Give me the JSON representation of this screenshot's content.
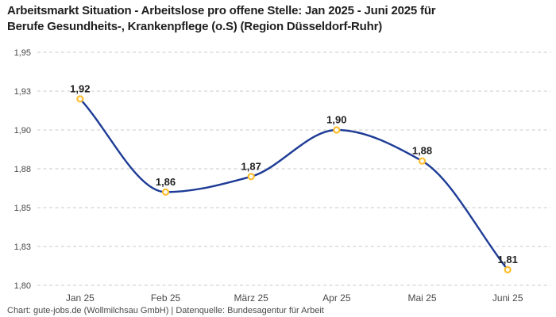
{
  "title": {
    "line1": "Arbeitsmarkt Situation - Arbeitslose pro offene Stelle: Jan 2025 - Juni 2025 für",
    "line2": "Berufe Gesundheits-, Krankenpflege (o.S) (Region Düsseldorf-Ruhr)"
  },
  "footer": "Chart: gute-jobs.de (Wollmilchsau GmbH) | Datenquelle: Bundesagentur für Arbeit",
  "colors": {
    "line": "#1e3c96",
    "marker_ring": "#fcbe2d",
    "marker_fill": "#ffffff",
    "gridline": "#c9c9c9",
    "title_text": "#1f1f1f",
    "axis_text": "#494949"
  },
  "chart_data": {
    "type": "line",
    "title": "Arbeitsmarkt Situation - Arbeitslose pro offene Stelle: Jan 2025 - Juni 2025 für Berufe Gesundheits-, Krankenpflege (o.S) (Region Düsseldorf-Ruhr)",
    "categories": [
      "Jan 25",
      "Feb 25",
      "März 25",
      "Apr 25",
      "Mai 25",
      "Juni 25"
    ],
    "values": [
      1.92,
      1.86,
      1.87,
      1.9,
      1.88,
      1.81
    ],
    "point_labels": [
      "1,92",
      "1,86",
      "1,87",
      "1,90",
      "1,88",
      "1,81"
    ],
    "ylim": [
      1.8,
      1.95
    ],
    "yticks": [
      {
        "value": 1.95,
        "label": "1,95"
      },
      {
        "value": 1.925,
        "label": "1,93"
      },
      {
        "value": 1.9,
        "label": "1,90"
      },
      {
        "value": 1.875,
        "label": "1,88"
      },
      {
        "value": 1.85,
        "label": "1,85"
      },
      {
        "value": 1.825,
        "label": "1,83"
      },
      {
        "value": 1.8,
        "label": "1,80"
      }
    ],
    "xlabel": "",
    "ylabel": "",
    "grid": "horizontal-dashed",
    "legend": "none",
    "curve": "monotone"
  }
}
